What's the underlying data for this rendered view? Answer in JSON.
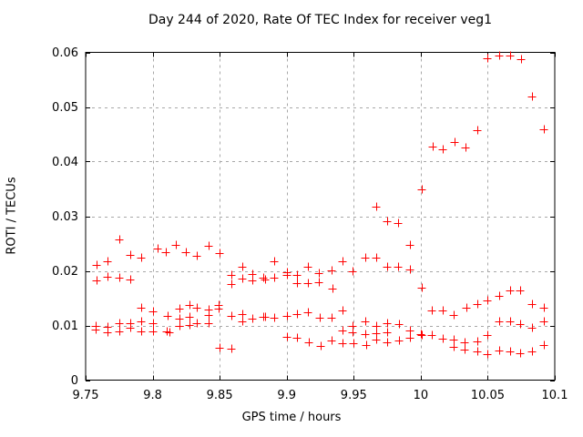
{
  "chart_data": {
    "type": "scatter",
    "title": "Day 244 of 2020, Rate Of TEC Index for receiver veg1",
    "xlabel": "GPS time / hours",
    "ylabel": "ROTI / TECUs",
    "xlim": [
      9.75,
      10.1
    ],
    "ylim": [
      0,
      0.06
    ],
    "xticks": [
      9.75,
      9.8,
      9.85,
      9.9,
      9.95,
      10,
      10.05,
      10.1
    ],
    "xtick_labels": [
      "9.75",
      "9.8",
      "9.85",
      "9.9",
      "9.95",
      "10",
      "10.05",
      "10.1"
    ],
    "yticks": [
      0,
      0.01,
      0.02,
      0.03,
      0.04,
      0.05,
      0.06
    ],
    "ytick_labels": [
      "0",
      "0.01",
      "0.02",
      "0.03",
      "0.04",
      "0.05",
      "0.06"
    ],
    "grid": true,
    "legend": "none",
    "marker": {
      "shape": "plus",
      "color": "#ff0000",
      "size": 9
    },
    "grid_color": "#a8a8a8",
    "axis_color": "#000000",
    "background_color": "#ffffff",
    "series": [
      {
        "name": "ROTI",
        "points": [
          [
            9.7575,
            0.01
          ],
          [
            9.7575,
            0.0093
          ],
          [
            9.758,
            0.0211
          ],
          [
            9.758,
            0.0183
          ],
          [
            9.766,
            0.0218
          ],
          [
            9.766,
            0.0189
          ],
          [
            9.766,
            0.0097
          ],
          [
            9.766,
            0.0087
          ],
          [
            9.775,
            0.0258
          ],
          [
            9.775,
            0.0187
          ],
          [
            9.775,
            0.0105
          ],
          [
            9.775,
            0.009
          ],
          [
            9.7835,
            0.023
          ],
          [
            9.7835,
            0.0184
          ],
          [
            9.7835,
            0.0104
          ],
          [
            9.7835,
            0.0096
          ],
          [
            9.7915,
            0.0225
          ],
          [
            9.7915,
            0.0132
          ],
          [
            9.7915,
            0.0107
          ],
          [
            9.7915,
            0.0089
          ],
          [
            9.8035,
            0.0241
          ],
          [
            9.8,
            0.0126
          ],
          [
            9.8,
            0.0105
          ],
          [
            9.8,
            0.009
          ],
          [
            9.8095,
            0.0234
          ],
          [
            9.8115,
            0.0118
          ],
          [
            9.8105,
            0.0089
          ],
          [
            9.8125,
            0.0088
          ],
          [
            9.817,
            0.0247
          ],
          [
            9.82,
            0.0131
          ],
          [
            9.82,
            0.0113
          ],
          [
            9.82,
            0.0099
          ],
          [
            9.825,
            0.0235
          ],
          [
            9.8275,
            0.0138
          ],
          [
            9.8275,
            0.0116
          ],
          [
            9.8275,
            0.0101
          ],
          [
            9.833,
            0.0228
          ],
          [
            9.833,
            0.0132
          ],
          [
            9.833,
            0.0105
          ],
          [
            9.8415,
            0.0246
          ],
          [
            9.8415,
            0.0129
          ],
          [
            9.8415,
            0.012
          ],
          [
            9.8415,
            0.0105
          ],
          [
            9.85,
            0.0233
          ],
          [
            9.849,
            0.0138
          ],
          [
            9.849,
            0.0131
          ],
          [
            9.85,
            0.006
          ],
          [
            9.8585,
            0.0193
          ],
          [
            9.8585,
            0.0176
          ],
          [
            9.8585,
            0.0118
          ],
          [
            9.8585,
            0.0057
          ],
          [
            9.867,
            0.0208
          ],
          [
            9.867,
            0.0186
          ],
          [
            9.867,
            0.0121
          ],
          [
            9.867,
            0.0108
          ],
          [
            9.8745,
            0.0194
          ],
          [
            9.8745,
            0.0183
          ],
          [
            9.8745,
            0.0113
          ],
          [
            9.8825,
            0.0187
          ],
          [
            9.884,
            0.0184
          ],
          [
            9.8825,
            0.0116
          ],
          [
            9.884,
            0.0116
          ],
          [
            9.891,
            0.0218
          ],
          [
            9.891,
            0.0187
          ],
          [
            9.891,
            0.0115
          ],
          [
            9.9,
            0.0198
          ],
          [
            9.9,
            0.0192
          ],
          [
            9.9,
            0.0118
          ],
          [
            9.9005,
            0.008
          ],
          [
            9.908,
            0.0193
          ],
          [
            9.908,
            0.0178
          ],
          [
            9.908,
            0.0121
          ],
          [
            9.908,
            0.0077
          ],
          [
            9.916,
            0.0207
          ],
          [
            9.916,
            0.0178
          ],
          [
            9.916,
            0.0124
          ],
          [
            9.9165,
            0.0069
          ],
          [
            9.924,
            0.0196
          ],
          [
            9.924,
            0.0179
          ],
          [
            9.9245,
            0.0115
          ],
          [
            9.925,
            0.0063
          ],
          [
            9.9335,
            0.0201
          ],
          [
            9.934,
            0.0168
          ],
          [
            9.9335,
            0.0115
          ],
          [
            9.9335,
            0.0072
          ],
          [
            9.9415,
            0.0218
          ],
          [
            9.9415,
            0.0128
          ],
          [
            9.9415,
            0.0091
          ],
          [
            9.9415,
            0.0068
          ],
          [
            9.949,
            0.02
          ],
          [
            9.949,
            0.0099
          ],
          [
            9.949,
            0.0088
          ],
          [
            9.9495,
            0.0067
          ],
          [
            9.9585,
            0.0225
          ],
          [
            9.9585,
            0.0107
          ],
          [
            9.9585,
            0.0085
          ],
          [
            9.959,
            0.0065
          ],
          [
            9.967,
            0.0317
          ],
          [
            9.967,
            0.0225
          ],
          [
            9.967,
            0.01
          ],
          [
            9.967,
            0.0086
          ],
          [
            9.967,
            0.0074
          ],
          [
            9.975,
            0.0291
          ],
          [
            9.975,
            0.0208
          ],
          [
            9.975,
            0.0104
          ],
          [
            9.975,
            0.0088
          ],
          [
            9.975,
            0.0069
          ],
          [
            9.983,
            0.0287
          ],
          [
            9.983,
            0.0208
          ],
          [
            9.9835,
            0.0102
          ],
          [
            9.9835,
            0.0072
          ],
          [
            9.992,
            0.0247
          ],
          [
            9.992,
            0.0203
          ],
          [
            9.992,
            0.0091
          ],
          [
            9.992,
            0.0077
          ],
          [
            10.0005,
            0.0349
          ],
          [
            10.0005,
            0.017
          ],
          [
            10.0,
            0.0084
          ],
          [
            10.001,
            0.0083
          ],
          [
            10.009,
            0.0428
          ],
          [
            10.008,
            0.0127
          ],
          [
            10.008,
            0.0083
          ],
          [
            10.0165,
            0.0422
          ],
          [
            10.0165,
            0.0128
          ],
          [
            10.0165,
            0.0076
          ],
          [
            10.025,
            0.0436
          ],
          [
            10.0245,
            0.0119
          ],
          [
            10.0245,
            0.0075
          ],
          [
            10.0245,
            0.0061
          ],
          [
            10.0335,
            0.0426
          ],
          [
            10.034,
            0.0132
          ],
          [
            10.033,
            0.0069
          ],
          [
            10.033,
            0.0056
          ],
          [
            10.042,
            0.0457
          ],
          [
            10.042,
            0.0139
          ],
          [
            10.042,
            0.0071
          ],
          [
            10.042,
            0.0053
          ],
          [
            10.0495,
            0.0589
          ],
          [
            10.0495,
            0.0146
          ],
          [
            10.0495,
            0.0083
          ],
          [
            10.0495,
            0.0048
          ],
          [
            10.0585,
            0.0595
          ],
          [
            10.0585,
            0.0154
          ],
          [
            10.0585,
            0.0108
          ],
          [
            10.0585,
            0.0055
          ],
          [
            10.067,
            0.0595
          ],
          [
            10.067,
            0.0165
          ],
          [
            10.067,
            0.0107
          ],
          [
            10.067,
            0.0053
          ],
          [
            10.075,
            0.0588
          ],
          [
            10.0745,
            0.0164
          ],
          [
            10.0745,
            0.0103
          ],
          [
            10.0745,
            0.005
          ],
          [
            10.083,
            0.0519
          ],
          [
            10.083,
            0.0139
          ],
          [
            10.083,
            0.0096
          ],
          [
            10.083,
            0.0053
          ],
          [
            10.092,
            0.0459
          ],
          [
            10.092,
            0.0133
          ],
          [
            10.092,
            0.0108
          ],
          [
            10.092,
            0.0065
          ]
        ]
      }
    ]
  }
}
